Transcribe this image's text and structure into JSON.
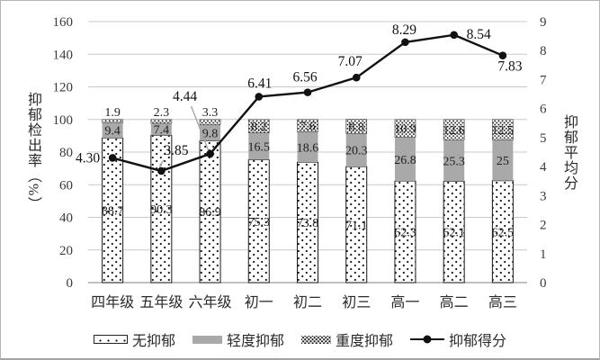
{
  "chart_data": {
    "type": "bar",
    "subtype": "stacked-percent-bars-with-line",
    "categories": [
      "四年级",
      "五年级",
      "六年级",
      "初一",
      "初二",
      "初三",
      "高一",
      "高二",
      "高三"
    ],
    "left_axis": {
      "title": "抑郁检出率（%）",
      "min": 0,
      "max": 160,
      "ticks": [
        0,
        20,
        40,
        60,
        80,
        100,
        120,
        140,
        160
      ]
    },
    "right_axis": {
      "title": "抑郁平均分",
      "min": 0,
      "max": 9,
      "ticks": [
        0,
        1,
        2,
        3,
        4,
        5,
        6,
        7,
        8,
        9
      ]
    },
    "grid": true,
    "legend": {
      "position": "bottom",
      "items": [
        "无抑郁",
        "轻度抑郁",
        "重度抑郁",
        "抑郁得分"
      ]
    },
    "series": [
      {
        "name": "无抑郁",
        "type": "bar",
        "axis": "left",
        "values": [
          88.7,
          90.3,
          86.9,
          75.3,
          73.8,
          71.1,
          62.3,
          62.1,
          62.5
        ],
        "labels": [
          "88.7",
          "90.3",
          "86.9",
          "75.3",
          "73.8",
          "71.1",
          "62.3",
          "62.1",
          "62.5"
        ]
      },
      {
        "name": "轻度抑郁",
        "type": "bar",
        "axis": "left",
        "values": [
          9.4,
          7.4,
          9.8,
          16.5,
          18.6,
          20.3,
          26.8,
          25.3,
          25
        ],
        "labels": [
          "9.4",
          "7.4",
          "9.8",
          "16.5",
          "18.6",
          "20.3",
          "26.8",
          "25.3",
          "25"
        ]
      },
      {
        "name": "重度抑郁",
        "type": "bar",
        "axis": "left",
        "values": [
          1.9,
          2.3,
          3.3,
          8.2,
          7.6,
          8.8,
          10.9,
          12.6,
          12.5
        ],
        "labels": [
          "1.9",
          "2.3",
          "3.3",
          "8.2",
          "7.6",
          "8.8",
          "10.9",
          "12.6",
          "12.5"
        ]
      },
      {
        "name": "抑郁得分",
        "type": "line",
        "axis": "right",
        "values": [
          4.3,
          3.85,
          4.44,
          6.41,
          6.56,
          7.07,
          8.29,
          8.54,
          7.83
        ],
        "labels": [
          "4.30",
          "3.85",
          "4.44",
          "6.41",
          "6.56",
          "7.07",
          "8.29",
          "8.54",
          "7.83"
        ]
      }
    ],
    "colors": {
      "bar_none_fill": "#ffffff",
      "bar_mild_fill": "#a9a9a9",
      "bar_severe_fill": "#ffffff",
      "pattern_dot": "#1a1a1a",
      "line": "#111111",
      "gridline": "#c9c9c9",
      "axis_line": "#9b9b9b",
      "text": "#1f1f1f"
    }
  }
}
